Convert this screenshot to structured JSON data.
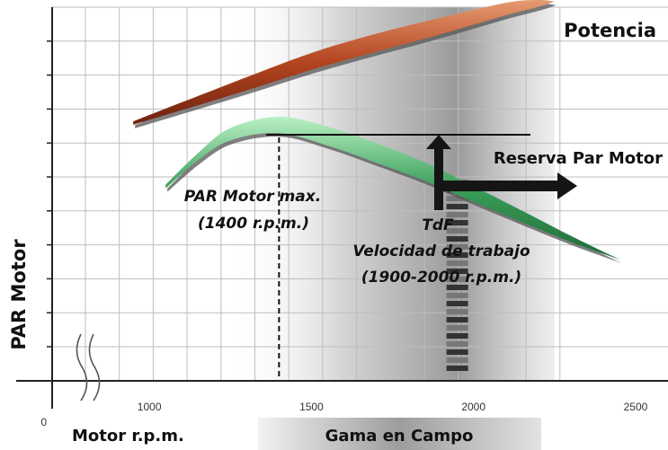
{
  "chart_data": {
    "type": "line",
    "title": "",
    "xlabel": "Motor r.p.m.",
    "ylabel": "PAR Motor",
    "origin_label": "0",
    "x_ticks": [
      1000,
      1500,
      2000,
      2500
    ],
    "xlim": [
      700,
      2600
    ],
    "ylim": [
      0,
      10
    ],
    "grid": true,
    "band": {
      "label": "Gama en Campo",
      "x_range": [
        1250,
        2250
      ],
      "peak_x": 1950
    },
    "series": [
      {
        "name": "Potencia",
        "color": "#b3441f",
        "x": [
          950,
          1100,
          1300,
          1500,
          1700,
          1900,
          2100,
          2200,
          2250
        ],
        "y": [
          6.9,
          7.35,
          7.95,
          8.55,
          9.05,
          9.5,
          9.95,
          10.1,
          10.15
        ]
      },
      {
        "name": "",
        "color": "#3a9e5a",
        "x": [
          1050,
          1150,
          1250,
          1400,
          1550,
          1700,
          1850,
          2000,
          2150,
          2300,
          2450
        ],
        "y": [
          5.2,
          6.0,
          6.6,
          6.85,
          6.55,
          6.1,
          5.6,
          5.0,
          4.4,
          3.8,
          3.25
        ]
      }
    ],
    "annotations": {
      "peak_line": "PAR Motor max.",
      "peak_rpm": "(1400 r.p.m.)",
      "pto_title": "TdF",
      "pto_line1": "Velocidad de trabajo",
      "pto_line2": "(1900-2000 r.p.m.)",
      "reserve": "Reserva Par Motor",
      "peak_x": 1400,
      "pto_x": 1950,
      "reserve_ref_y": 6.85
    }
  }
}
